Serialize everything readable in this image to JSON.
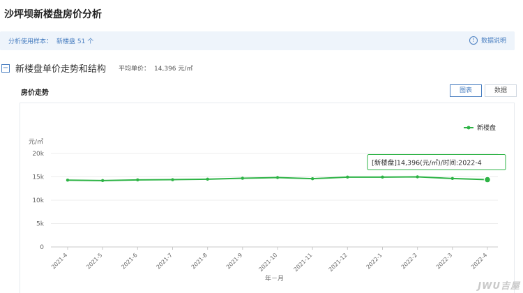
{
  "page_title": "沙坪坝新楼盘房价分析",
  "info_bar": {
    "sample_label": "分析使用样本：",
    "sample_value": "新楼盘 51 个",
    "data_desc_label": "数据说明",
    "data_desc_icon": "info-circle-icon"
  },
  "section": {
    "title": "新楼盘单价走势和结构",
    "avg_label": "平均单价：",
    "avg_value": "14,396 元/㎡",
    "collapse_icon": "minus-square-icon"
  },
  "trend": {
    "title": "房价走势",
    "tabs": [
      {
        "label": "图表",
        "active": true
      },
      {
        "label": "数据",
        "active": false
      }
    ]
  },
  "chart_data": {
    "type": "line",
    "xlabel": "年－月",
    "ylabel": "元/㎡",
    "ylim": [
      0,
      20000
    ],
    "y_ticks": [
      "0",
      "5k",
      "10k",
      "15k",
      "20k"
    ],
    "grid": true,
    "legend_position": "top-right",
    "x": [
      "2021-4",
      "2021-5",
      "2021-6",
      "2021-7",
      "2021-8",
      "2021-9",
      "2021-10",
      "2021-11",
      "2021-12",
      "2022-1",
      "2022-2",
      "2022-3",
      "2022-4"
    ],
    "series": [
      {
        "name": "新楼盘",
        "color": "#2db345",
        "values": [
          14300,
          14200,
          14350,
          14400,
          14500,
          14700,
          14850,
          14600,
          14950,
          14950,
          15000,
          14650,
          14396
        ]
      }
    ],
    "tooltip": "[新楼盘]14,396(元/㎡)/时间:2022-4"
  },
  "watermark": "JWU吉屋"
}
